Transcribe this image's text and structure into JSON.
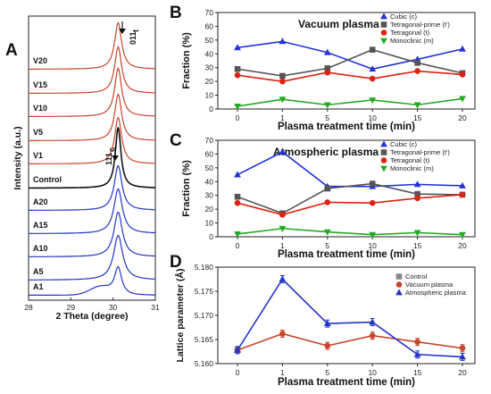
{
  "panels": {
    "A": "A",
    "B": "B",
    "C": "C",
    "D": "D"
  },
  "colors": {
    "cubic": "#2233dd",
    "tprime": "#555555",
    "tetragonal": "#dd2211",
    "monoclinic": "#22aa22",
    "vacuum": "#c8452a",
    "control": "#111111",
    "atmospheric": "#2233cc"
  },
  "chart_data": [
    {
      "id": "A",
      "type": "line",
      "xlabel": "2 Theta (degree)",
      "ylabel": "Intensity (a.u.)",
      "xlim": [
        28,
        31
      ],
      "xticks": [
        "28",
        "29",
        "30",
        "31"
      ],
      "series": [
        {
          "name": "V20",
          "group": "vacuum"
        },
        {
          "name": "V15",
          "group": "vacuum"
        },
        {
          "name": "V10",
          "group": "vacuum"
        },
        {
          "name": "V5",
          "group": "vacuum"
        },
        {
          "name": "V1",
          "group": "vacuum"
        },
        {
          "name": "Control",
          "group": "control"
        },
        {
          "name": "A20",
          "group": "atmospheric"
        },
        {
          "name": "A15",
          "group": "atmospheric"
        },
        {
          "name": "A10",
          "group": "atmospheric"
        },
        {
          "name": "A5",
          "group": "atmospheric"
        },
        {
          "name": "A1",
          "group": "atmospheric"
        }
      ],
      "annotations": [
        {
          "text": "011",
          "sub": "t",
          "x": 30.15
        },
        {
          "text": "111",
          "sub": "c",
          "x": 30.05
        }
      ]
    },
    {
      "id": "B",
      "type": "line",
      "title": "Vacuum plasma",
      "xlabel": "Plasma treatment time (min)",
      "ylabel": "Fraction (%)",
      "categories": [
        "0",
        "1",
        "5",
        "10",
        "15",
        "20"
      ],
      "ylim": [
        0,
        70
      ],
      "yticks": [
        "0",
        "10",
        "20",
        "30",
        "40",
        "50",
        "60",
        "70"
      ],
      "series": [
        {
          "name": "Cubic (c)",
          "key": "cubic",
          "marker": "triangle-up",
          "values": [
            44.5,
            49,
            41,
            29,
            36,
            43.5
          ]
        },
        {
          "name": "Tetragonal-prime (t')",
          "key": "tprime",
          "marker": "square",
          "values": [
            29,
            24,
            29.5,
            43,
            33.5,
            26
          ]
        },
        {
          "name": "Tetragonal (t)",
          "key": "tetragonal",
          "marker": "circle",
          "values": [
            24.5,
            20,
            26.5,
            22,
            27.5,
            25
          ]
        },
        {
          "name": "Monoclinic (m)",
          "key": "monoclinic",
          "marker": "triangle-down",
          "values": [
            2,
            7,
            3,
            6.5,
            3,
            7.5
          ]
        }
      ]
    },
    {
      "id": "C",
      "type": "line",
      "title": "Atmospheric plasma",
      "xlabel": "Plasma treatment time (min)",
      "ylabel": "Fraction (%)",
      "categories": [
        "0",
        "1",
        "5",
        "10",
        "15",
        "20"
      ],
      "ylim": [
        0,
        70
      ],
      "yticks": [
        "0",
        "10",
        "20",
        "30",
        "40",
        "50",
        "60",
        "70"
      ],
      "series": [
        {
          "name": "Cubic (c)",
          "key": "cubic",
          "marker": "triangle-up",
          "values": [
            45,
            61.5,
            36.5,
            36.5,
            38,
            37
          ]
        },
        {
          "name": "Tetragonal-prime (t')",
          "key": "tprime",
          "marker": "square",
          "values": [
            29,
            17,
            35,
            38.5,
            31,
            30.5
          ]
        },
        {
          "name": "Tetragonal (t)",
          "key": "tetragonal",
          "marker": "circle",
          "values": [
            24.5,
            16,
            25,
            24.5,
            28,
            30.5
          ]
        },
        {
          "name": "Monoclinic (m)",
          "key": "monoclinic",
          "marker": "triangle-down",
          "values": [
            2,
            6,
            3.5,
            1.5,
            3,
            1.5
          ]
        }
      ]
    },
    {
      "id": "D",
      "type": "line",
      "xlabel": "Plasma treatment time (min)",
      "ylabel": "Lattice parameter (Å)",
      "categories": [
        "0",
        "1",
        "5",
        "10",
        "15",
        "20"
      ],
      "ylim": [
        5.16,
        5.18
      ],
      "yticks": [
        "5.160",
        "5.165",
        "5.170",
        "5.175",
        "5.180"
      ],
      "series": [
        {
          "name": "Control",
          "key": "control",
          "marker": "square",
          "color": "#888888",
          "values": [
            5.1628,
            null,
            null,
            null,
            null,
            null
          ]
        },
        {
          "name": "Vacuum plasma",
          "key": "vacuum",
          "marker": "circle",
          "values": [
            5.1628,
            5.1662,
            5.1637,
            5.1658,
            5.1645,
            5.1632
          ]
        },
        {
          "name": "Atmospheric plasma",
          "key": "atmospheric",
          "marker": "triangle-up",
          "values": [
            5.1628,
            5.1775,
            5.1683,
            5.1686,
            5.1619,
            5.1614
          ]
        }
      ]
    }
  ]
}
